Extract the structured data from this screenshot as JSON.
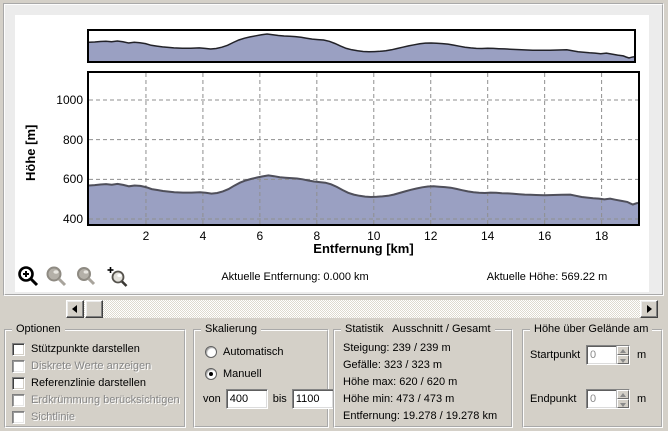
{
  "chart_data": {
    "type": "area",
    "title": "",
    "xlabel": "Entfernung [km]",
    "ylabel": "Höhe [m]",
    "x_range": [
      0,
      19.278
    ],
    "y_scale_manual": [
      400,
      1100
    ],
    "x_axis_ticks": [
      2,
      4,
      6,
      8,
      10,
      12,
      14,
      16,
      18
    ],
    "y_axis_ticks": [
      1000,
      800,
      600,
      400
    ],
    "grid": "dashed",
    "fill_color": "#9aa0c2",
    "line_color": "#4f4f5a",
    "profile": [
      [
        0.0,
        569
      ],
      [
        0.2,
        571
      ],
      [
        0.4,
        574
      ],
      [
        0.6,
        576
      ],
      [
        0.8,
        573
      ],
      [
        1.0,
        577
      ],
      [
        1.2,
        572
      ],
      [
        1.4,
        565
      ],
      [
        1.6,
        569
      ],
      [
        1.8,
        567
      ],
      [
        2.0,
        561
      ],
      [
        2.2,
        551
      ],
      [
        2.4,
        546
      ],
      [
        2.6,
        541
      ],
      [
        2.8,
        538
      ],
      [
        3.0,
        535
      ],
      [
        3.3,
        533
      ],
      [
        3.6,
        533
      ],
      [
        3.9,
        535
      ],
      [
        4.1,
        532
      ],
      [
        4.3,
        528
      ],
      [
        4.5,
        531
      ],
      [
        4.7,
        539
      ],
      [
        4.9,
        551
      ],
      [
        5.1,
        568
      ],
      [
        5.3,
        583
      ],
      [
        5.5,
        594
      ],
      [
        5.7,
        602
      ],
      [
        5.9,
        609
      ],
      [
        6.1,
        615
      ],
      [
        6.3,
        620
      ],
      [
        6.5,
        616
      ],
      [
        6.7,
        611
      ],
      [
        6.9,
        608
      ],
      [
        7.1,
        606
      ],
      [
        7.3,
        604
      ],
      [
        7.5,
        600
      ],
      [
        7.7,
        594
      ],
      [
        7.9,
        589
      ],
      [
        8.1,
        586
      ],
      [
        8.3,
        583
      ],
      [
        8.5,
        575
      ],
      [
        8.7,
        562
      ],
      [
        8.9,
        546
      ],
      [
        9.1,
        532
      ],
      [
        9.3,
        523
      ],
      [
        9.5,
        517
      ],
      [
        9.7,
        513
      ],
      [
        9.9,
        511
      ],
      [
        10.1,
        512
      ],
      [
        10.3,
        514
      ],
      [
        10.5,
        517
      ],
      [
        10.7,
        523
      ],
      [
        10.9,
        531
      ],
      [
        11.1,
        539
      ],
      [
        11.3,
        547
      ],
      [
        11.5,
        554
      ],
      [
        11.7,
        560
      ],
      [
        11.9,
        564
      ],
      [
        12.1,
        565
      ],
      [
        12.3,
        563
      ],
      [
        12.5,
        561
      ],
      [
        12.7,
        558
      ],
      [
        12.9,
        552
      ],
      [
        13.1,
        545
      ],
      [
        13.3,
        539
      ],
      [
        13.5,
        535
      ],
      [
        13.7,
        532
      ],
      [
        13.9,
        531
      ],
      [
        14.1,
        533
      ],
      [
        14.3,
        532
      ],
      [
        14.5,
        530
      ],
      [
        14.7,
        529
      ],
      [
        14.9,
        527
      ],
      [
        15.1,
        525
      ],
      [
        15.3,
        523
      ],
      [
        15.5,
        522
      ],
      [
        15.7,
        521
      ],
      [
        16.0,
        520
      ],
      [
        16.3,
        521
      ],
      [
        16.6,
        522
      ],
      [
        16.9,
        523
      ],
      [
        17.1,
        517
      ],
      [
        17.3,
        511
      ],
      [
        17.5,
        508
      ],
      [
        17.7,
        505
      ],
      [
        17.9,
        503
      ],
      [
        18.1,
        499
      ],
      [
        18.3,
        503
      ],
      [
        18.5,
        497
      ],
      [
        18.7,
        491
      ],
      [
        18.9,
        486
      ],
      [
        19.0,
        479
      ],
      [
        19.1,
        473
      ],
      [
        19.2,
        478
      ],
      [
        19.278,
        481
      ]
    ]
  },
  "axis": {
    "ylabel": "Höhe [m]",
    "xlabel": "Entfernung [km]"
  },
  "toolbar": {
    "icons": [
      "zoom-in",
      "zoom-window",
      "zoom-out",
      "zoom-custom"
    ]
  },
  "status": {
    "distance": "Aktuelle Entfernung: 0.000 km",
    "height": "Aktuelle Höhe: 569.22 m"
  },
  "options": {
    "title": "Optionen",
    "items": [
      {
        "label": "Stützpunkte darstellen",
        "enabled": true,
        "checked": false
      },
      {
        "label": "Diskrete Werte anzeigen",
        "enabled": false,
        "checked": false
      },
      {
        "label": "Referenzlinie darstellen",
        "enabled": true,
        "checked": false
      },
      {
        "label": "Erdkrümmung berücksichtigen",
        "enabled": false,
        "checked": false
      },
      {
        "label": "Sichtlinie",
        "enabled": false,
        "checked": false
      }
    ]
  },
  "scaling": {
    "title": "Skalierung",
    "radios": [
      {
        "label": "Automatisch",
        "selected": false
      },
      {
        "label": "Manuell",
        "selected": true
      }
    ],
    "von_label": "von",
    "von_value": "400",
    "bis_label": "bis",
    "bis_value": "1100"
  },
  "statistics": {
    "title": "Statistik   Ausschnitt / Gesamt",
    "rows": [
      "Steigung: 239 / 239 m",
      "Gefälle: 323 / 323 m",
      "Höhe max: 620 / 620 m",
      "Höhe min: 473 / 473 m",
      "Entfernung: 19.278 / 19.278 km"
    ]
  },
  "terrain": {
    "title": "Höhe über Gelände am",
    "rows": [
      {
        "label": "Startpunkt",
        "value": "0",
        "unit": "m"
      },
      {
        "label": "Endpunkt",
        "value": "0",
        "unit": "m"
      }
    ]
  }
}
